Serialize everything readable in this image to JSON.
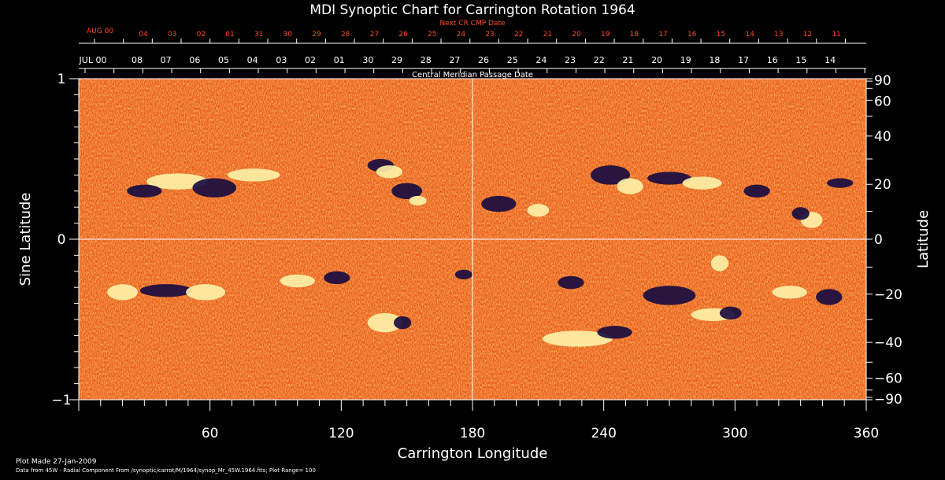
{
  "chart_data": {
    "type": "heatmap",
    "title": "MDI Synoptic Chart for Carrington Rotation 1964",
    "xlabel": "Carrington Longitude",
    "ylabel_left": "Sine Latitude",
    "ylabel_right": "Latitude",
    "xlim": [
      0,
      360
    ],
    "ylim": [
      -1,
      1
    ],
    "x_ticks": [
      60,
      120,
      180,
      240,
      300,
      360
    ],
    "y_ticks_left": [
      "1",
      "0",
      "−1"
    ],
    "y_ticks_right": [
      90,
      60,
      40,
      20,
      0,
      -20,
      -40,
      -60,
      -90
    ],
    "top_axis_title": "Central Meridian Passage Date",
    "top_axis_month": "JUL 00",
    "top_axis_days": [
      "08",
      "07",
      "06",
      "05",
      "04",
      "03",
      "02",
      "01",
      "30",
      "29",
      "28",
      "27",
      "26",
      "25",
      "24",
      "23",
      "22",
      "21",
      "20",
      "19",
      "18",
      "17",
      "16",
      "15",
      "14"
    ],
    "next_cr_title": "Next CR CMP Date",
    "next_cr_month": "AUG 00",
    "next_cr_days": [
      "04",
      "03",
      "02",
      "01",
      "31",
      "30",
      "29",
      "28",
      "27",
      "26",
      "25",
      "24",
      "23",
      "22",
      "21",
      "20",
      "19",
      "18",
      "17",
      "16",
      "15",
      "14",
      "13",
      "12",
      "11"
    ],
    "footer_made": "Plot Made 27-Jan-2009",
    "footer_source": "Data from 45W - Radial Component From /synoptic/carrot/M/1964/synop_Mr_45W.1964.fits; Plot Range= 100",
    "colors": {
      "background": "#000000",
      "field": "#f2601c",
      "positive": "#fff2a8",
      "negative": "#140a40",
      "next_cr": "#ff4a1e"
    }
  }
}
